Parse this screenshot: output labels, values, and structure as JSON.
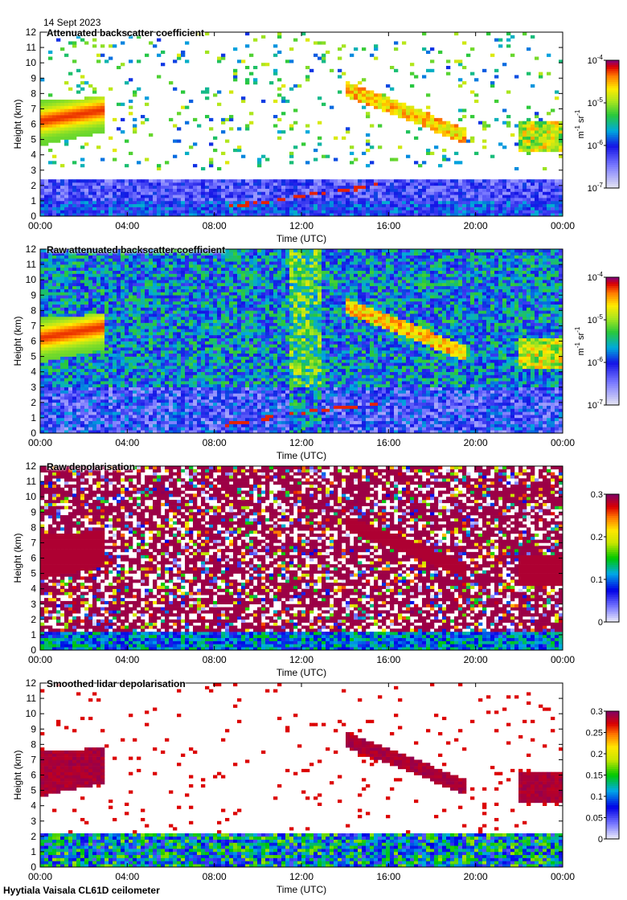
{
  "date": "14 Sept 2023",
  "footer": "Hyytiala Vaisala CL61D ceilometer",
  "chart_data": [
    {
      "type": "heatmap",
      "title": "Attenuated backscatter coefficient",
      "xlabel": "Time (UTC)",
      "ylabel": "Height (km)",
      "x_ticks": [
        "00:00",
        "04:00",
        "08:00",
        "12:00",
        "16:00",
        "20:00",
        "00:00"
      ],
      "y_ticks": [
        "0",
        "1",
        "2",
        "3",
        "4",
        "5",
        "6",
        "7",
        "8",
        "9",
        "10",
        "11",
        "12"
      ],
      "ylim": [
        0,
        12
      ],
      "colorbar": {
        "label": "m-1 sr-1",
        "scale": "log",
        "range": [
          "10^-7",
          "10^-4"
        ],
        "ticks": [
          {
            "b": "10",
            "e": "-4"
          },
          {
            "b": "10",
            "e": "-5"
          },
          {
            "b": "10",
            "e": "-6"
          },
          {
            "b": "10",
            "e": "-7"
          }
        ]
      }
    },
    {
      "type": "heatmap",
      "title": "Raw attenuated backscatter coefficient",
      "xlabel": "Time (UTC)",
      "ylabel": "Height (km)",
      "x_ticks": [
        "00:00",
        "04:00",
        "08:00",
        "12:00",
        "16:00",
        "20:00",
        "00:00"
      ],
      "y_ticks": [
        "0",
        "1",
        "2",
        "3",
        "4",
        "5",
        "6",
        "7",
        "8",
        "9",
        "10",
        "11",
        "12"
      ],
      "ylim": [
        0,
        12
      ],
      "colorbar": {
        "label": "m-1 sr-1",
        "scale": "log",
        "range": [
          "10^-7",
          "10^-4"
        ],
        "ticks": [
          {
            "b": "10",
            "e": "-4"
          },
          {
            "b": "10",
            "e": "-5"
          },
          {
            "b": "10",
            "e": "-6"
          },
          {
            "b": "10",
            "e": "-7"
          }
        ]
      }
    },
    {
      "type": "heatmap",
      "title": "Raw depolarisation",
      "xlabel": "Time (UTC)",
      "ylabel": "Height (km)",
      "x_ticks": [
        "00:00",
        "04:00",
        "08:00",
        "12:00",
        "16:00",
        "20:00",
        "00:00"
      ],
      "y_ticks": [
        "0",
        "1",
        "2",
        "3",
        "4",
        "5",
        "6",
        "7",
        "8",
        "9",
        "10",
        "11",
        "12"
      ],
      "ylim": [
        0,
        12
      ],
      "colorbar": {
        "label": "",
        "scale": "linear",
        "range": [
          0,
          0.3
        ],
        "ticks": [
          "0.3",
          "0.2",
          "0.1",
          "0"
        ]
      }
    },
    {
      "type": "heatmap",
      "title": "Smoothed lidar depolarisation",
      "xlabel": "Time (UTC)",
      "ylabel": "Height (km)",
      "x_ticks": [
        "00:00",
        "04:00",
        "08:00",
        "12:00",
        "16:00",
        "20:00",
        "00:00"
      ],
      "y_ticks": [
        "0",
        "1",
        "2",
        "3",
        "4",
        "5",
        "6",
        "7",
        "8",
        "9",
        "10",
        "11",
        "12"
      ],
      "ylim": [
        0,
        12
      ],
      "colorbar": {
        "label": "",
        "scale": "linear",
        "range": [
          0,
          0.3
        ],
        "ticks": [
          "0.3",
          "0.25",
          "0.2",
          "0.15",
          "0.1",
          "0.05",
          "0"
        ]
      }
    }
  ]
}
